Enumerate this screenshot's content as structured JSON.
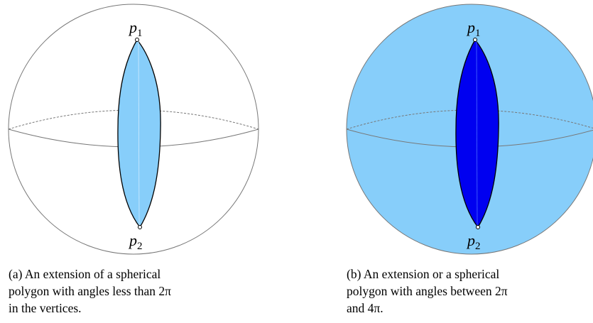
{
  "panels": [
    {
      "vertex_top": {
        "symbol": "p",
        "subscript": "1"
      },
      "vertex_bottom": {
        "symbol": "p",
        "subscript": "2"
      },
      "caption": [
        "(a) An extension of a spherical",
        "polygon with angles less than 2π",
        "in the vertices."
      ]
    },
    {
      "vertex_top": {
        "symbol": "p",
        "subscript": "1"
      },
      "vertex_bottom": {
        "symbol": "p",
        "subscript": "2"
      },
      "caption": [
        "(b) An extension or a spherical",
        "polygon with angles between 2π",
        "and 4π."
      ]
    }
  ]
}
